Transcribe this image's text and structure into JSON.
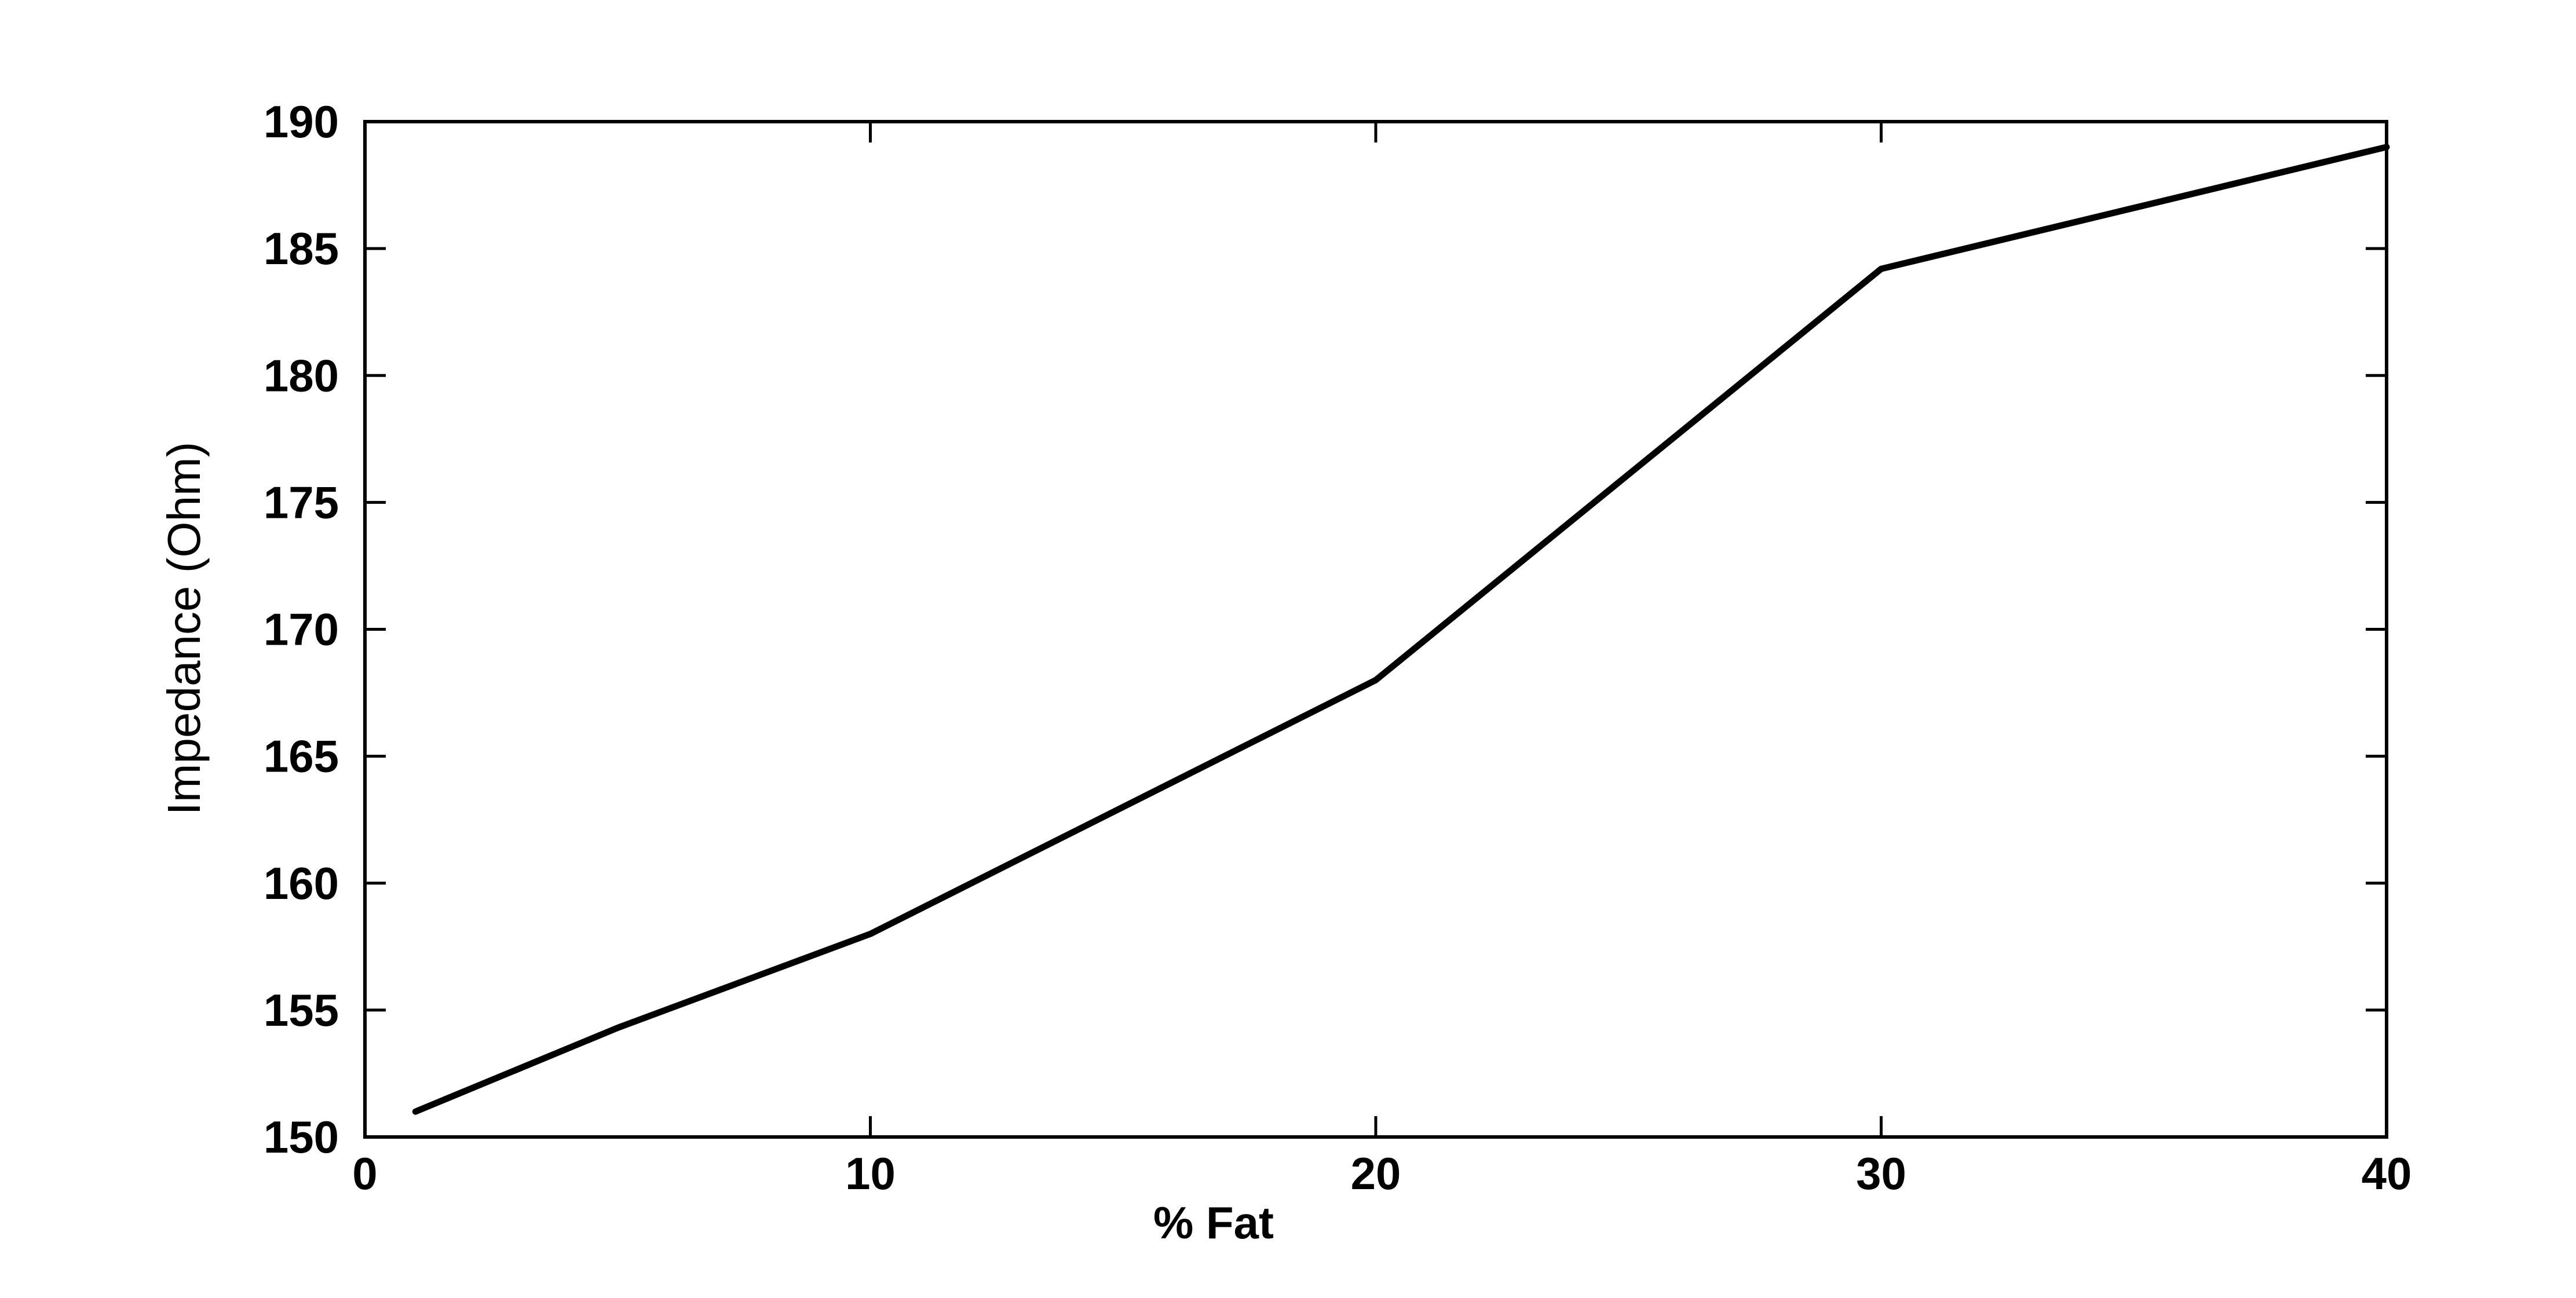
{
  "chart_data": {
    "type": "line",
    "title": "",
    "xlabel": "% Fat",
    "ylabel": "Impedance (Ohm)",
    "xlim": [
      0,
      40
    ],
    "ylim": [
      150,
      190
    ],
    "xticks": [
      0,
      10,
      20,
      30,
      40
    ],
    "yticks": [
      150,
      155,
      160,
      165,
      170,
      175,
      180,
      185,
      190
    ],
    "grid": false,
    "legend": "none",
    "series": [
      {
        "color": "#000000",
        "x": [
          1,
          5,
          10,
          20,
          30,
          40
        ],
        "y": [
          151,
          154.3,
          158,
          168,
          184.2,
          189
        ]
      }
    ]
  }
}
